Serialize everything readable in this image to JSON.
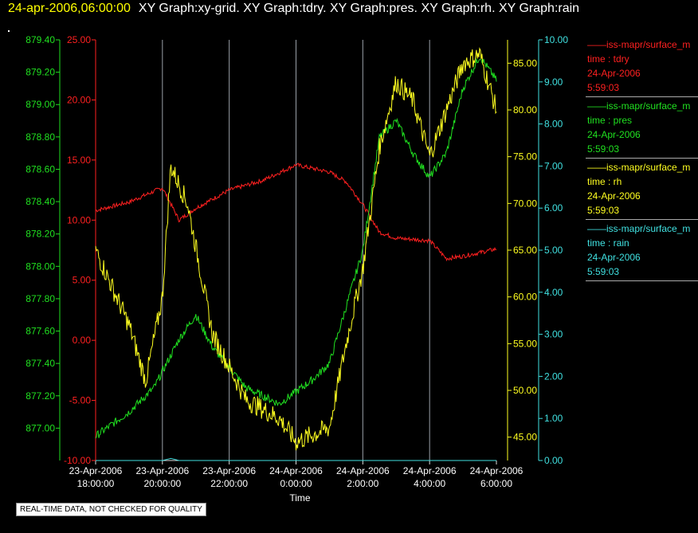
{
  "header": {
    "timestamp": "24-apr-2006,06:00:00",
    "graphs": "XY Graph:xy-grid.  XY Graph:tdry.  XY Graph:pres.  XY Graph:rh.  XY Graph:rain"
  },
  "notice": "REAL-TIME DATA, NOT CHECKED FOR QUALITY",
  "legend": [
    {
      "source": "iss-mapr/surface_m",
      "var": "time : tdry",
      "date": "24-Apr-2006",
      "time": "5:59:03",
      "color": "#ff2020"
    },
    {
      "source": "iss-mapr/surface_m",
      "var": "time : pres",
      "date": "24-Apr-2006",
      "time": "5:59:03",
      "color": "#20e020"
    },
    {
      "source": "iss-mapr/surface_m",
      "var": "time : rh",
      "date": "24-Apr-2006",
      "time": "5:59:03",
      "color": "#ffff20"
    },
    {
      "source": "iss-mapr/surface_m",
      "var": "time : rain",
      "date": "24-Apr-2006",
      "time": "5:59:03",
      "color": "#40e0e0"
    }
  ],
  "chart_data": {
    "type": "line",
    "xlabel": "Time",
    "x_ticks": [
      {
        "date": "23-Apr-2006",
        "time": "18:00:00"
      },
      {
        "date": "23-Apr-2006",
        "time": "20:00:00"
      },
      {
        "date": "23-Apr-2006",
        "time": "22:00:00"
      },
      {
        "date": "24-Apr-2006",
        "time": "0:00:00"
      },
      {
        "date": "24-Apr-2006",
        "time": "2:00:00"
      },
      {
        "date": "24-Apr-2006",
        "time": "4:00:00"
      },
      {
        "date": "24-Apr-2006",
        "time": "6:00:00"
      }
    ],
    "xlim": [
      "23-Apr-2006 18:00:00",
      "24-Apr-2006 6:00:00"
    ],
    "grid": "vertical",
    "axes": [
      {
        "name": "pres",
        "color": "#20e020",
        "ylim": [
          876.8,
          879.4
        ],
        "ticks": [
          "877.00",
          "877.20",
          "877.40",
          "877.60",
          "877.80",
          "878.00",
          "878.20",
          "878.40",
          "878.60",
          "878.80",
          "879.00",
          "879.20",
          "879.40"
        ]
      },
      {
        "name": "tdry",
        "color": "#ff2020",
        "ylim": [
          -10,
          25
        ],
        "ticks": [
          "-10.00",
          "-5.00",
          "0.00",
          "5.00",
          "10.00",
          "15.00",
          "20.00",
          "25.00"
        ]
      },
      {
        "name": "rh",
        "color": "#ffff20",
        "ylim": [
          42.5,
          87.5
        ],
        "ticks": [
          "45.00",
          "50.00",
          "55.00",
          "60.00",
          "65.00",
          "70.00",
          "75.00",
          "80.00",
          "85.00"
        ]
      },
      {
        "name": "rain",
        "color": "#40e0e0",
        "ylim": [
          0,
          10
        ],
        "ticks": [
          "0.00",
          "1.00",
          "2.00",
          "3.00",
          "4.00",
          "5.00",
          "6.00",
          "7.00",
          "8.00",
          "9.00",
          "10.00"
        ]
      }
    ],
    "series": [
      {
        "name": "tdry",
        "axis": "tdry",
        "color": "#ff2020",
        "x": [
          "23-Apr-2006 18:00",
          "23-Apr-2006 19:00",
          "23-Apr-2006 20:00",
          "23-Apr-2006 20:30",
          "23-Apr-2006 21:00",
          "23-Apr-2006 22:00",
          "23-Apr-2006 23:00",
          "24-Apr-2006 0:00",
          "24-Apr-2006 1:00",
          "24-Apr-2006 1:30",
          "24-Apr-2006 2:00",
          "24-Apr-2006 2:30",
          "24-Apr-2006 3:00",
          "24-Apr-2006 4:00",
          "24-Apr-2006 4:30",
          "24-Apr-2006 5:00",
          "24-Apr-2006 6:00"
        ],
        "values": [
          10.8,
          11.5,
          12.7,
          10.0,
          11.0,
          12.5,
          13.3,
          14.6,
          14.0,
          13.2,
          11.3,
          9.0,
          8.5,
          8.3,
          6.8,
          7.0,
          7.6
        ]
      },
      {
        "name": "pres",
        "axis": "pres",
        "color": "#20e020",
        "x": [
          "23-Apr-2006 18:00",
          "23-Apr-2006 19:00",
          "23-Apr-2006 19:45",
          "23-Apr-2006 20:30",
          "23-Apr-2006 21:00",
          "23-Apr-2006 21:30",
          "23-Apr-2006 22:30",
          "23-Apr-2006 23:30",
          "24-Apr-2006 0:30",
          "24-Apr-2006 1:00",
          "24-Apr-2006 2:00",
          "24-Apr-2006 2:30",
          "24-Apr-2006 3:00",
          "24-Apr-2006 3:30",
          "24-Apr-2006 4:00",
          "24-Apr-2006 4:30",
          "24-Apr-2006 5:00",
          "24-Apr-2006 5:30",
          "24-Apr-2006 6:00"
        ],
        "values": [
          876.95,
          877.1,
          877.25,
          877.55,
          877.7,
          877.5,
          877.25,
          877.15,
          877.3,
          877.4,
          878.1,
          878.8,
          878.9,
          878.7,
          878.55,
          878.7,
          879.1,
          879.3,
          879.15
        ]
      },
      {
        "name": "rh",
        "axis": "rh",
        "color": "#ffff20",
        "x": [
          "23-Apr-2006 18:00",
          "23-Apr-2006 19:00",
          "23-Apr-2006 19:30",
          "23-Apr-2006 20:00",
          "23-Apr-2006 20:15",
          "23-Apr-2006 20:45",
          "23-Apr-2006 21:30",
          "23-Apr-2006 22:30",
          "23-Apr-2006 23:30",
          "24-Apr-2006 0:00",
          "24-Apr-2006 1:00",
          "24-Apr-2006 1:30",
          "24-Apr-2006 2:00",
          "24-Apr-2006 2:30",
          "24-Apr-2006 3:00",
          "24-Apr-2006 3:30",
          "24-Apr-2006 4:00",
          "24-Apr-2006 4:30",
          "24-Apr-2006 5:00",
          "24-Apr-2006 5:30",
          "24-Apr-2006 6:00"
        ],
        "values": [
          65.0,
          57.0,
          51.0,
          60.0,
          74.0,
          70.0,
          56.0,
          49.0,
          47.0,
          44.5,
          46.0,
          55.0,
          63.0,
          76.0,
          83.0,
          81.0,
          75.0,
          80.0,
          85.0,
          86.0,
          80.0
        ]
      },
      {
        "name": "rain",
        "axis": "rain",
        "color": "#40e0e0",
        "x": [
          "23-Apr-2006 18:00",
          "23-Apr-2006 20:00",
          "23-Apr-2006 20:15",
          "23-Apr-2006 20:30",
          "24-Apr-2006 6:00"
        ],
        "values": [
          0.0,
          0.0,
          0.05,
          0.0,
          0.0
        ]
      }
    ]
  }
}
